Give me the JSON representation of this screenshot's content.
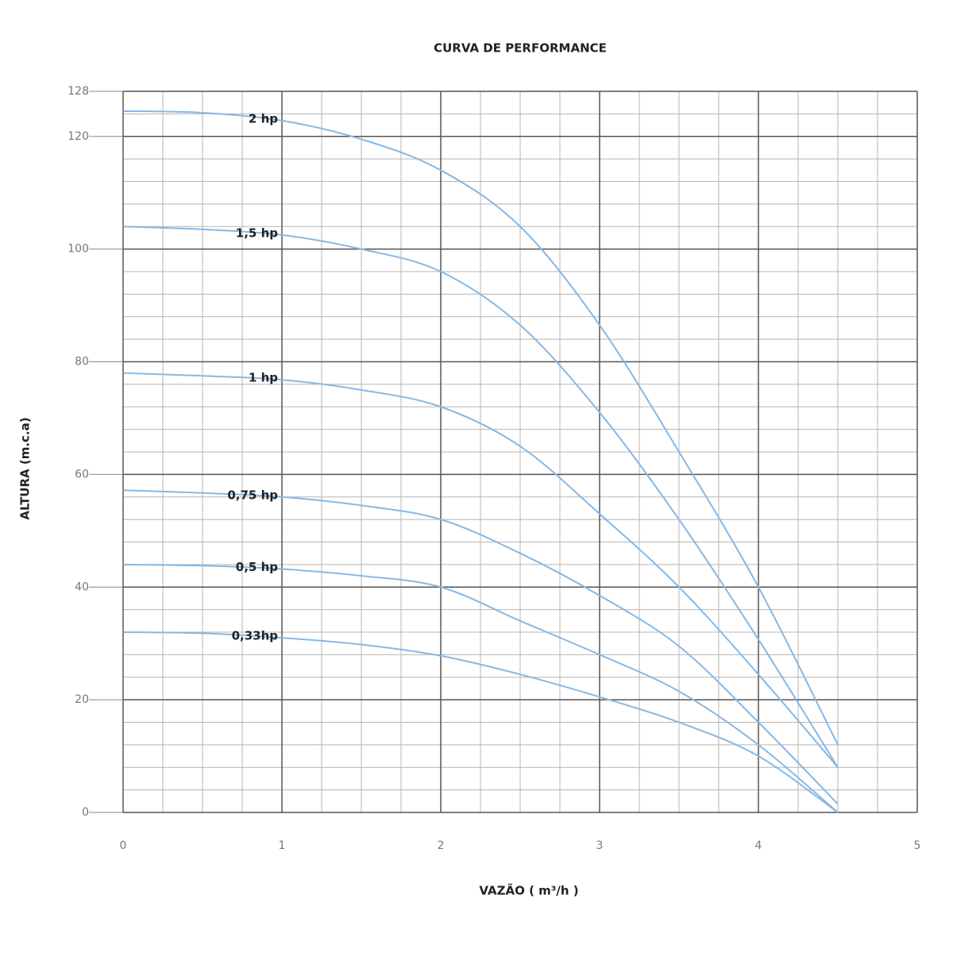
{
  "chart_data": {
    "type": "line",
    "title": "CURVA DE PERFORMANCE",
    "x_label": "VAZÃO ( m³/h )",
    "y_label": "ALTURA (m.c.a)",
    "x": [
      0,
      0.5,
      1,
      1.5,
      2,
      2.5,
      3,
      3.5,
      4,
      4.5
    ],
    "series": [
      {
        "name": "2 hp",
        "color": "#86b8e4",
        "values": [
          124.5,
          124.2,
          122.8,
          119.5,
          114,
          104,
          86.5,
          64,
          40,
          12
        ]
      },
      {
        "name": "1,5 hp",
        "color": "#86b8e4",
        "values": [
          104,
          103.5,
          102.5,
          100,
          96,
          86.5,
          71,
          52,
          30.7,
          8
        ]
      },
      {
        "name": "1 hp",
        "color": "#86b8e4",
        "values": [
          78,
          77.5,
          76.8,
          75,
          72,
          65,
          53,
          40,
          24.5,
          8
        ]
      },
      {
        "name": "0,75 hp",
        "color": "#86b8e4",
        "values": [
          57.2,
          56.7,
          56,
          54.5,
          52,
          46,
          38.5,
          29.5,
          16,
          1.5
        ]
      },
      {
        "name": "0,5 hp",
        "color": "#86b8e4",
        "values": [
          44,
          43.8,
          43.2,
          42,
          40,
          34,
          28,
          21.5,
          12,
          0
        ]
      },
      {
        "name": "0,33hp",
        "color": "#86b8e4",
        "values": [
          32,
          31.8,
          31,
          29.8,
          27.8,
          24.5,
          20.5,
          16,
          10,
          0
        ]
      }
    ],
    "xlim": [
      0,
      5
    ],
    "xticks": [
      0,
      1,
      2,
      3,
      4,
      5
    ],
    "ylim": [
      0,
      128
    ],
    "yticks": [
      0,
      20,
      40,
      60,
      80,
      100,
      120,
      128
    ],
    "grid": true,
    "minor_grid": {
      "x": 0.25,
      "y": 4
    }
  }
}
